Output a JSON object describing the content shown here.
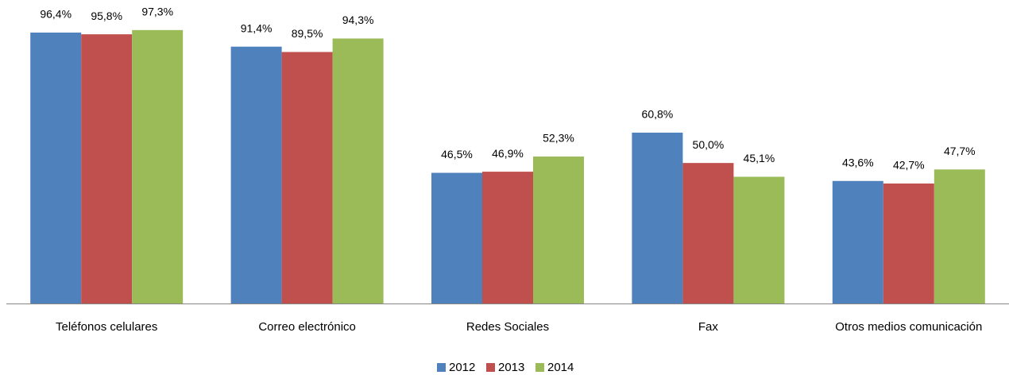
{
  "chart_data": {
    "type": "bar",
    "categories": [
      "Teléfonos celulares",
      "Correo electrónico",
      "Redes Sociales",
      "Fax",
      "Otros  medios comunicación"
    ],
    "series": [
      {
        "name": "2012",
        "color": "#4f81bd",
        "values": [
          96.4,
          91.4,
          46.5,
          60.8,
          43.6
        ],
        "value_labels": [
          "96,4%",
          "91,4%",
          "46,5%",
          "60,8%",
          "43,6%"
        ]
      },
      {
        "name": "2013",
        "color": "#c0504d",
        "values": [
          95.8,
          89.5,
          46.9,
          50.0,
          42.7
        ],
        "value_labels": [
          "95,8%",
          "89,5%",
          "46,9%",
          "50,0%",
          "42,7%"
        ]
      },
      {
        "name": "2014",
        "color": "#9bbb59",
        "values": [
          97.3,
          94.3,
          52.3,
          45.1,
          47.7
        ],
        "value_labels": [
          "97,3%",
          "94,3%",
          "52,3%",
          "45,1%",
          "47,7%"
        ]
      }
    ],
    "legend": "bottom"
  }
}
